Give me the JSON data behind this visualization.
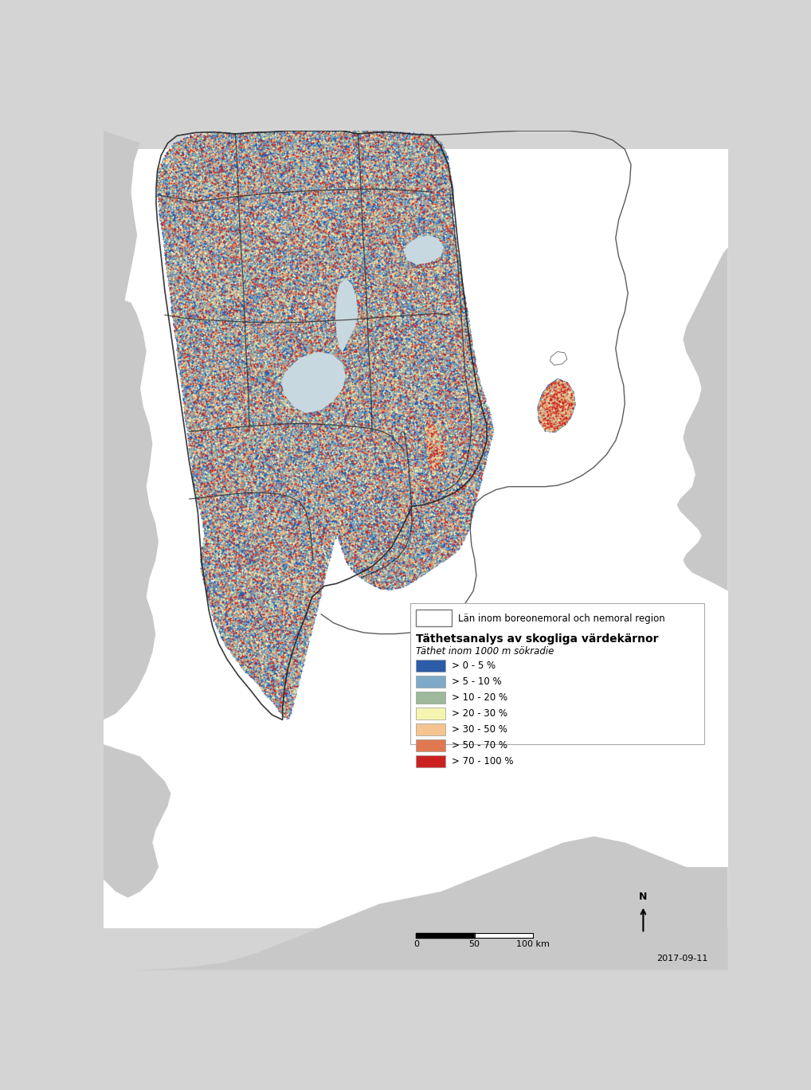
{
  "title": "Täthetsanalys av skogliga värdekärnor",
  "subtitle": "Täthet inom 1000 m sökradie",
  "legend_header": "Län inom boreonemoral och nemoral region",
  "legend_items": [
    {
      "label": "> 0 - 5 %",
      "color": "#2b5ca8"
    },
    {
      "label": "> 5 - 10 %",
      "color": "#7eaac8"
    },
    {
      "label": "> 10 - 20 %",
      "color": "#9db89a"
    },
    {
      "label": "> 20 - 30 %",
      "color": "#f5f5b0"
    },
    {
      "label": "> 30 - 50 %",
      "color": "#f5c490"
    },
    {
      "label": "> 50 - 70 %",
      "color": "#e07850"
    },
    {
      "label": "> 70 - 100 %",
      "color": "#cc2020"
    }
  ],
  "bg_color": "#d4d4d4",
  "sea_color": "#ffffff",
  "land_outside_color": "#c8c8c8",
  "date_text": "2017-09-11",
  "dot_weights": [
    0.6,
    0.15,
    0.08,
    0.05,
    0.06,
    0.03,
    0.03
  ],
  "n_dots": 220000,
  "dot_size": 2.5
}
